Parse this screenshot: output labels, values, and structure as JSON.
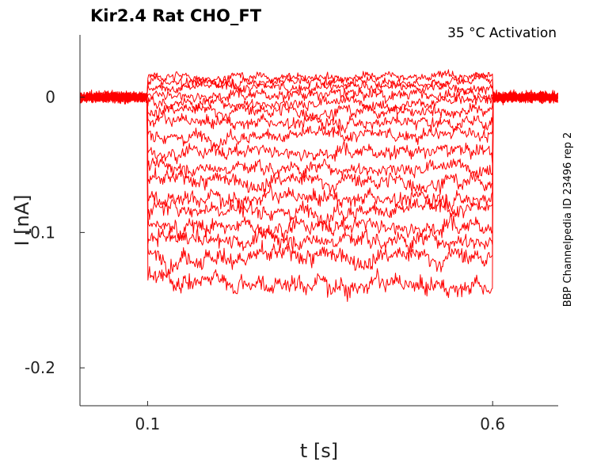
{
  "chart_data": {
    "type": "line",
    "title": "Kir2.4  Rat  CHO_FT",
    "annotation": "35 °C  Activation",
    "side_label": "BBP Channelpedia ID 23496 rep 2",
    "xlabel": "t [s]",
    "ylabel": "I [nA]",
    "xlim": [
      0.002,
      0.695
    ],
    "ylim": [
      -0.228,
      0.046
    ],
    "x_ticks": [
      {
        "value": 0.1,
        "label": "0.1"
      },
      {
        "value": 0.6,
        "label": "0.6"
      }
    ],
    "y_ticks": [
      {
        "value": 0,
        "label": "0"
      },
      {
        "value": -0.1,
        "label": "-0.1"
      },
      {
        "value": -0.2,
        "label": "-0.2"
      }
    ],
    "grid": false,
    "line_color": "#ff0000",
    "step_window": [
      0.1,
      0.6
    ],
    "series": [
      {
        "values": [
          0.0,
          0.015,
          0.015
        ]
      },
      {
        "values": [
          0.0,
          0.012,
          0.012
        ]
      },
      {
        "values": [
          0.0,
          0.007,
          0.007
        ]
      },
      {
        "values": [
          0.0,
          0.002,
          0.002
        ]
      },
      {
        "values": [
          0.0,
          -0.004,
          -0.004
        ]
      },
      {
        "values": [
          0.0,
          -0.01,
          -0.01
        ]
      },
      {
        "values": [
          0.0,
          -0.018,
          -0.018
        ]
      },
      {
        "values": [
          0.0,
          -0.028,
          -0.028
        ]
      },
      {
        "values": [
          0.0,
          -0.04,
          -0.04
        ]
      },
      {
        "values": [
          0.0,
          -0.052,
          -0.052
        ]
      },
      {
        "values": [
          0.0,
          -0.062,
          -0.062
        ]
      },
      {
        "values": [
          0.0,
          -0.074,
          -0.074
        ]
      },
      {
        "values": [
          0.0,
          -0.083,
          -0.083
        ]
      },
      {
        "values": [
          0.0,
          -0.095,
          -0.095
        ]
      },
      {
        "values": [
          0.0,
          -0.105,
          -0.105
        ]
      },
      {
        "values": [
          0.0,
          -0.118,
          -0.118
        ]
      },
      {
        "values": [
          0.0,
          -0.135,
          -0.14
        ]
      }
    ]
  }
}
